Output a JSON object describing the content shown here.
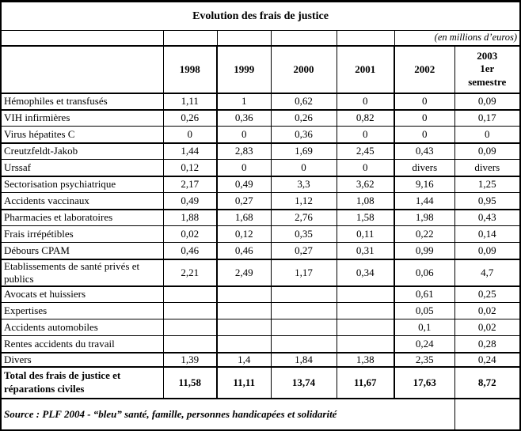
{
  "title": "Evolution des frais de justice",
  "units_note": "(en millions d’euros)",
  "col_headers": [
    "1998",
    "1999",
    "2000",
    "2001",
    "2002",
    "2003\n1er\nsemestre"
  ],
  "rows": [
    {
      "label": "Hémophiles et transfusés",
      "values": [
        "1,11",
        "1",
        "0,62",
        "0",
        "0",
        "0,09"
      ]
    },
    {
      "label": "VIH infirmières",
      "values": [
        "0,26",
        "0,36",
        "0,26",
        "0,82",
        "0",
        "0,17"
      ]
    },
    {
      "label": "Virus hépatites C",
      "values": [
        "0",
        "0",
        "0,36",
        "0",
        "0",
        "0"
      ]
    },
    {
      "label": "Creutzfeldt-Jakob",
      "values": [
        "1,44",
        "2,83",
        "1,69",
        "2,45",
        "0,43",
        "0,09"
      ]
    },
    {
      "label": "Urssaf",
      "values": [
        "0,12",
        "0",
        "0",
        "0",
        "divers",
        "divers"
      ]
    },
    {
      "label": "Sectorisation psychiatrique",
      "values": [
        "2,17",
        "0,49",
        "3,3",
        "3,62",
        "9,16",
        "1,25"
      ]
    },
    {
      "label": "Accidents vaccinaux",
      "values": [
        "0,49",
        "0,27",
        "1,12",
        "1,08",
        "1,44",
        "0,95"
      ]
    },
    {
      "label": "Pharmacies et laboratoires",
      "values": [
        "1,88",
        "1,68",
        "2,76",
        "1,58",
        "1,98",
        "0,43"
      ]
    },
    {
      "label": "Frais irrépétibles",
      "values": [
        "0,02",
        "0,12",
        "0,35",
        "0,11",
        "0,22",
        "0,14"
      ]
    },
    {
      "label": "Débours CPAM",
      "values": [
        "0,46",
        "0,46",
        "0,27",
        "0,31",
        "0,99",
        "0,09"
      ]
    },
    {
      "label": "Etablissements de santé privés et publics",
      "values": [
        "2,21",
        "2,49",
        "1,17",
        "0,34",
        "0,06",
        "4,7"
      ]
    },
    {
      "label": "Avocats et huissiers",
      "values": [
        "",
        "",
        "",
        "",
        "0,61",
        "0,25"
      ]
    },
    {
      "label": "Expertises",
      "values": [
        "",
        "",
        "",
        "",
        "0,05",
        "0,02"
      ]
    },
    {
      "label": "Accidents automobiles",
      "values": [
        "",
        "",
        "",
        "",
        "0,1",
        "0,02"
      ]
    },
    {
      "label": "Rentes accidents du travail",
      "values": [
        "",
        "",
        "",
        "",
        "0,24",
        "0,28"
      ]
    },
    {
      "label": "Divers",
      "values": [
        "1,39",
        "1,4",
        "1,84",
        "1,38",
        "2,35",
        "0,24"
      ]
    }
  ],
  "total_row": {
    "label": "Total des frais de justice et réparations civiles",
    "values": [
      "11,58",
      "11,11",
      "13,74",
      "11,67",
      "17,63",
      "8,72"
    ]
  },
  "source": "Source : PLF 2004 - “bleu” santé, famille, personnes handicapées et solidarité"
}
